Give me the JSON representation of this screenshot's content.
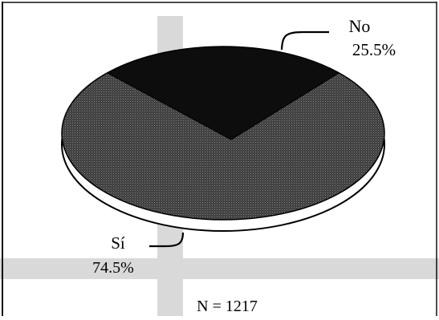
{
  "chart_data": {
    "type": "pie",
    "style": "3d-perspective",
    "slices": [
      {
        "label": "No",
        "value": 25.5,
        "value_label": "25.5%",
        "pattern": "solid-black"
      },
      {
        "label": "Sí",
        "value": 74.5,
        "value_label": "74.5%",
        "pattern": "dark-stipple"
      }
    ],
    "annotation": "N = 1217",
    "legend": "none",
    "label_placement": "outside-with-leader-lines",
    "colors": {
      "no_slice": "#0d0d0d",
      "si_slice": "#3a3a3a",
      "stipple_dots": "#8c8c8c",
      "rim": "#ffffff",
      "outline": "#000000",
      "frame": "#111111",
      "watermark": "#d9d9d9"
    }
  }
}
